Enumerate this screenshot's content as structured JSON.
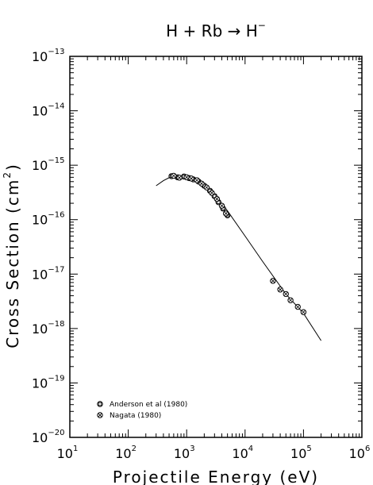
{
  "chart_data": {
    "type": "scatter",
    "title": {
      "base": "H + Rb → H",
      "sup": "−"
    },
    "xlabel": "Projectile Energy (eV)",
    "ylabel": {
      "base": "Cross Section (cm",
      "sup": "2",
      "close": ")"
    },
    "x_scale": "log",
    "y_scale": "log",
    "xlim": [
      10,
      1000000
    ],
    "ylim": [
      1e-20,
      1e-13
    ],
    "x_ticks": [
      {
        "value": 10,
        "base": "10",
        "exp": "1"
      },
      {
        "value": 100,
        "base": "10",
        "exp": "2"
      },
      {
        "value": 1000,
        "base": "10",
        "exp": "3"
      },
      {
        "value": 10000,
        "base": "10",
        "exp": "4"
      },
      {
        "value": 100000,
        "base": "10",
        "exp": "5"
      },
      {
        "value": 1000000,
        "base": "10",
        "exp": "6"
      }
    ],
    "y_ticks": [
      {
        "value": 1e-20,
        "base": "10",
        "exp": "−20"
      },
      {
        "value": 1e-19,
        "base": "10",
        "exp": "−19"
      },
      {
        "value": 1e-18,
        "base": "10",
        "exp": "−18"
      },
      {
        "value": 1e-17,
        "base": "10",
        "exp": "−17"
      },
      {
        "value": 1e-16,
        "base": "10",
        "exp": "−16"
      },
      {
        "value": 1e-15,
        "base": "10",
        "exp": "−15"
      },
      {
        "value": 1e-14,
        "base": "10",
        "exp": "−14"
      },
      {
        "value": 1e-13,
        "base": "10",
        "exp": "−13"
      }
    ],
    "grid": false,
    "legend_position": "bottom-left",
    "series": [
      {
        "name": "Anderson et al (1980)",
        "marker": "square",
        "x": [
          550,
          700,
          900,
          1100,
          1300,
          1600,
          2000,
          2500,
          3000,
          3500,
          4200,
          5000
        ],
        "y": [
          6.3e-16,
          6e-16,
          6.2e-16,
          5.8e-16,
          5.5e-16,
          5e-16,
          4.2e-16,
          3.4e-16,
          2.7e-16,
          2.1e-16,
          1.6e-16,
          1.2e-16
        ]
      },
      {
        "name": "Nagata (1980)",
        "marker": "circle",
        "x": [
          600,
          750,
          1000,
          1200,
          1500,
          1800,
          2200,
          2700,
          3300,
          4000,
          4700,
          30000,
          40000,
          50000,
          60000,
          80000,
          100000
        ],
        "y": [
          6.4e-16,
          5.9e-16,
          6e-16,
          5.7e-16,
          5.3e-16,
          4.6e-16,
          3.9e-16,
          3.1e-16,
          2.4e-16,
          1.8e-16,
          1.3e-16,
          7.5e-18,
          5.2e-18,
          4.3e-18,
          3.3e-18,
          2.5e-18,
          2e-18
        ]
      }
    ],
    "fit_curve": {
      "x": [
        300,
        400,
        500,
        700,
        1000,
        1500,
        2000,
        3000,
        5000,
        10000,
        20000,
        50000,
        100000,
        200000
      ],
      "y": [
        4.2e-16,
        5.2e-16,
        5.9e-16,
        6.1e-16,
        5.9e-16,
        5.1e-16,
        4.3e-16,
        2.9e-16,
        1.45e-16,
        5e-17,
        1.7e-17,
        4.3e-18,
        1.9e-18,
        6e-19
      ]
    }
  }
}
